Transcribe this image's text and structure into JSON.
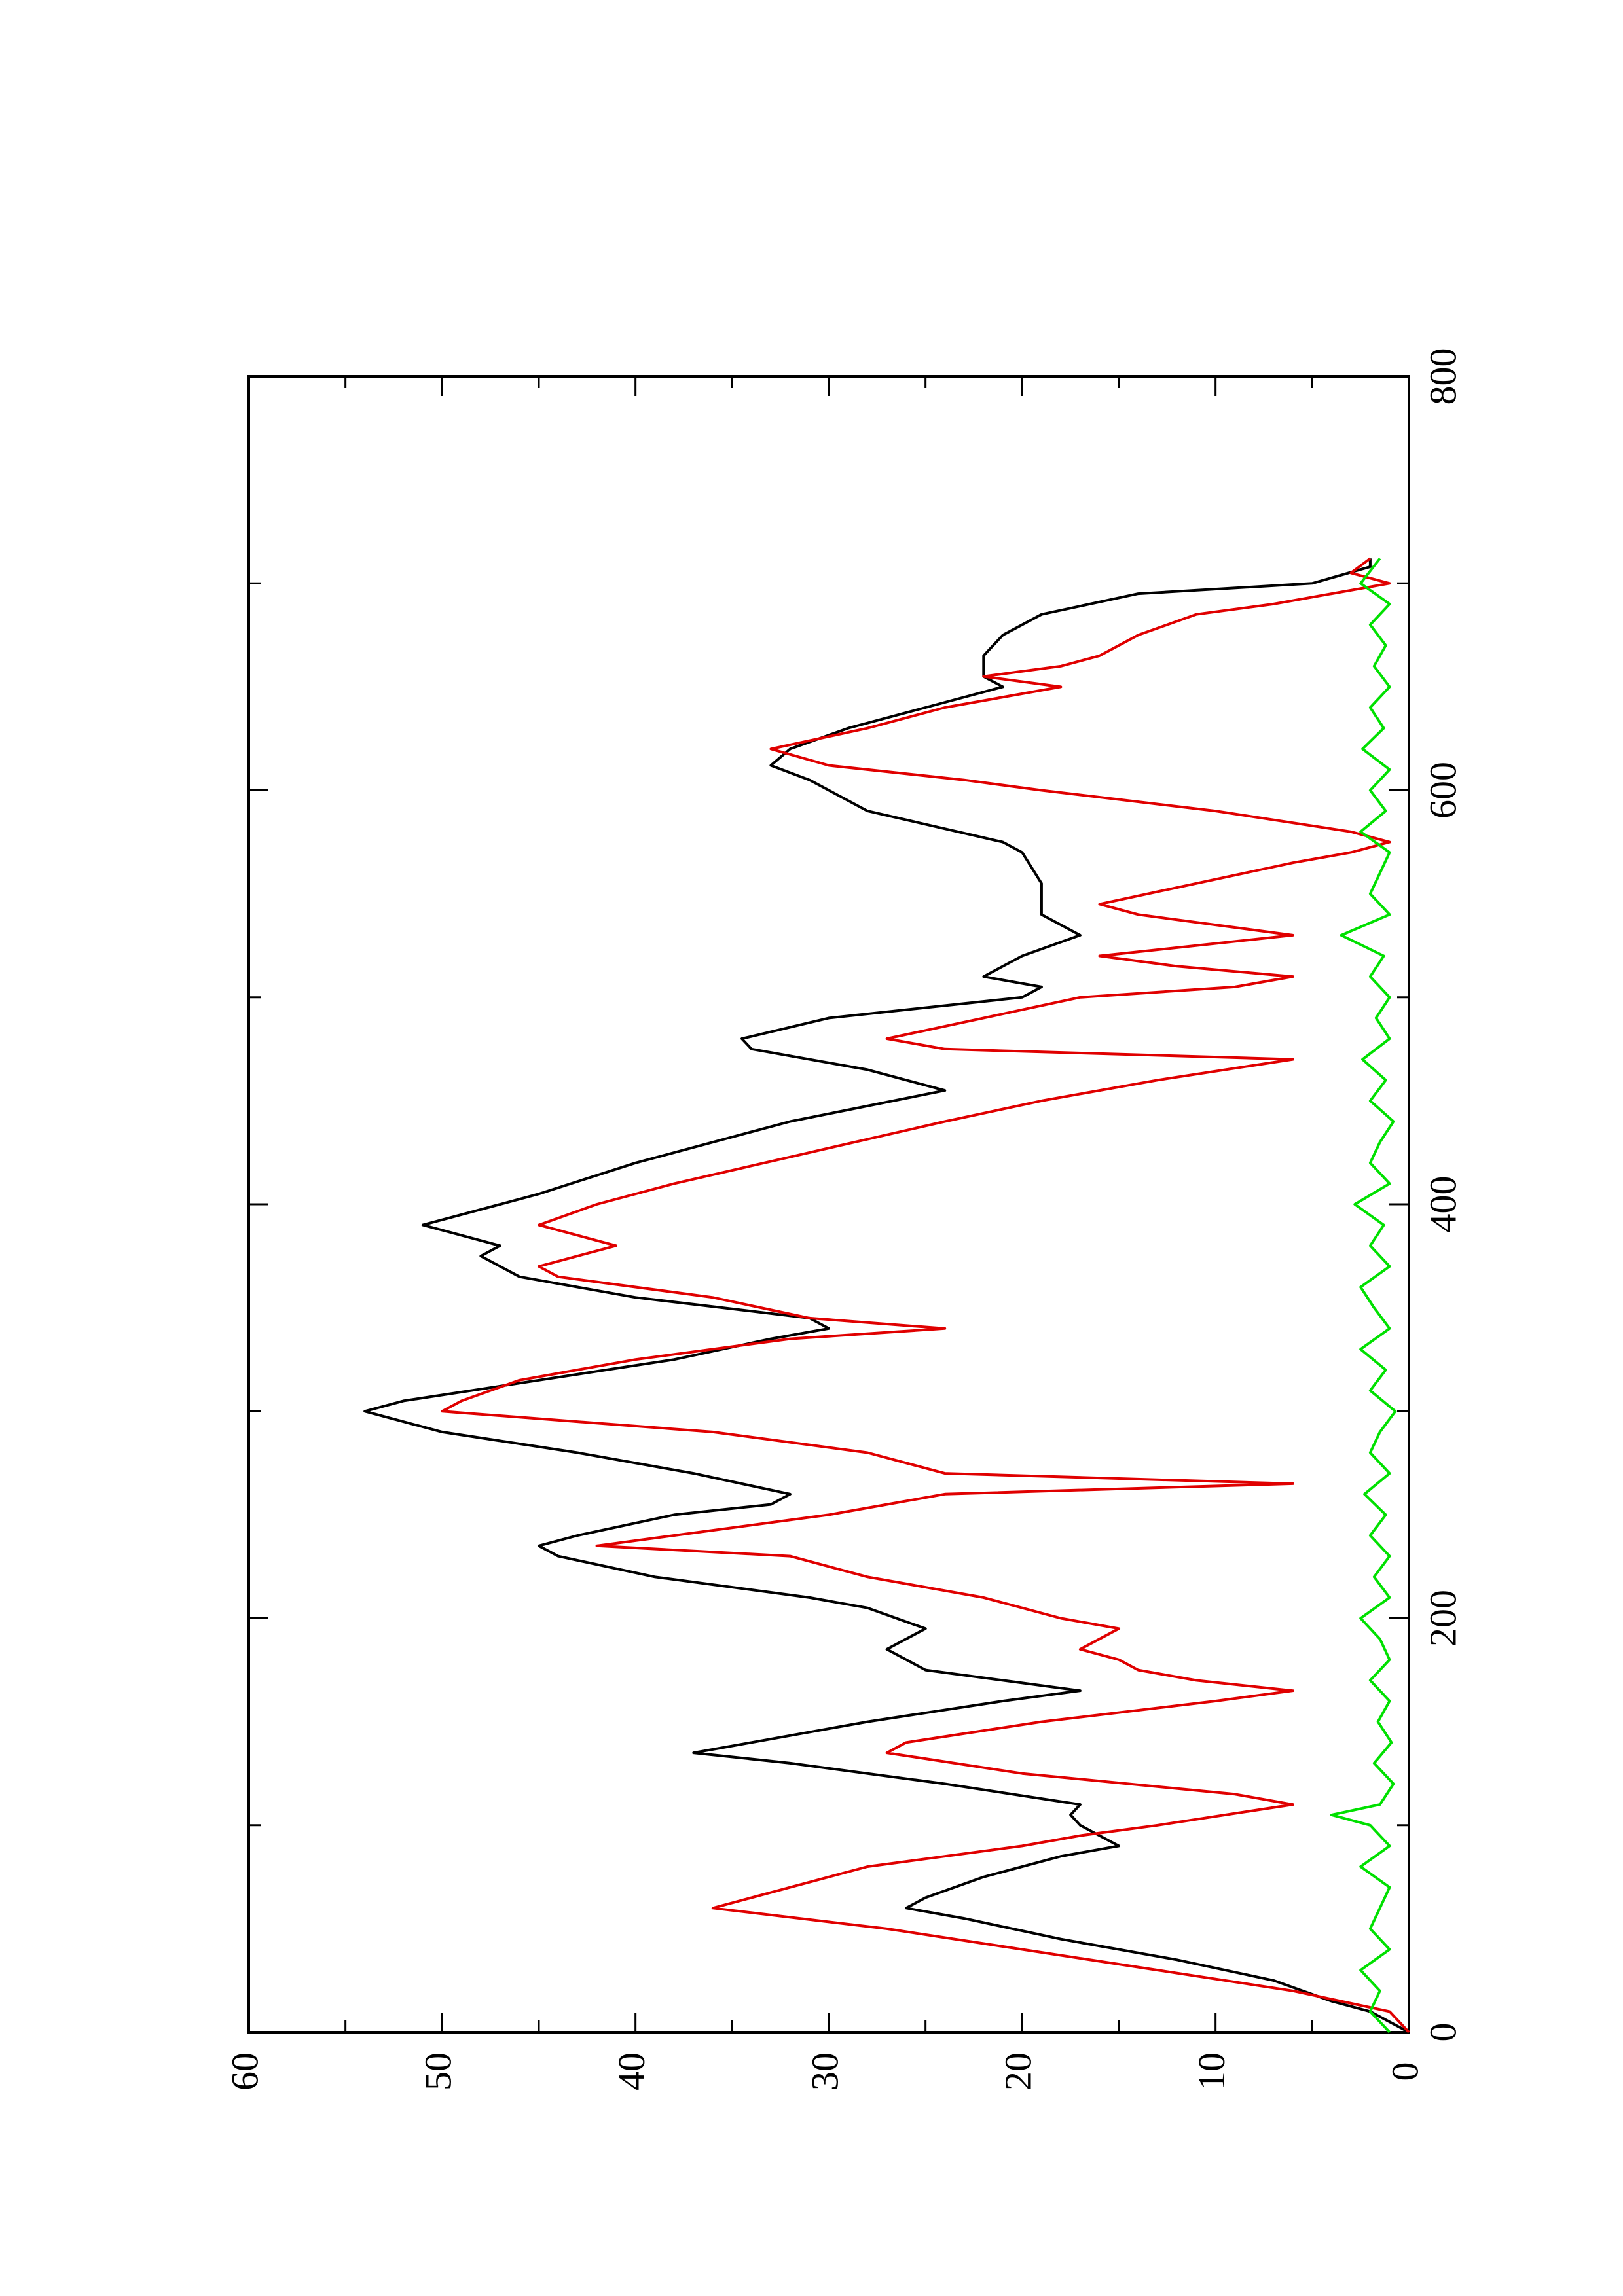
{
  "chart_data": {
    "type": "line",
    "orientation": "rotated-90-ccw",
    "title": "",
    "xlabel": "",
    "ylabel": "",
    "xlim": [
      0,
      800
    ],
    "ylim": [
      0,
      60
    ],
    "x_ticks": [
      0,
      200,
      400,
      600,
      800
    ],
    "x_tick_labels": [
      "0",
      "200",
      "400",
      "600",
      "800"
    ],
    "y_ticks": [
      0,
      10,
      20,
      30,
      40,
      50,
      60
    ],
    "y_tick_labels": [
      "0",
      "10",
      "20",
      "30",
      "40",
      "50",
      "60"
    ],
    "grid": false,
    "legend": "none",
    "series": [
      {
        "color": "#000000",
        "points": [
          [
            0,
            0
          ],
          [
            5,
            1
          ],
          [
            10,
            2
          ],
          [
            15,
            4
          ],
          [
            25,
            7
          ],
          [
            35,
            12
          ],
          [
            45,
            18
          ],
          [
            55,
            23
          ],
          [
            60,
            26
          ],
          [
            65,
            25
          ],
          [
            75,
            22
          ],
          [
            85,
            18
          ],
          [
            90,
            15
          ],
          [
            95,
            16
          ],
          [
            100,
            17
          ],
          [
            105,
            17.5
          ],
          [
            110,
            17
          ],
          [
            120,
            24
          ],
          [
            130,
            32
          ],
          [
            135,
            37
          ],
          [
            140,
            34
          ],
          [
            150,
            28
          ],
          [
            160,
            21
          ],
          [
            165,
            17
          ],
          [
            170,
            21
          ],
          [
            175,
            25
          ],
          [
            185,
            27
          ],
          [
            195,
            25
          ],
          [
            205,
            28
          ],
          [
            210,
            31
          ],
          [
            220,
            39
          ],
          [
            230,
            44
          ],
          [
            235,
            45
          ],
          [
            240,
            43
          ],
          [
            250,
            38
          ],
          [
            255,
            33
          ],
          [
            260,
            32
          ],
          [
            270,
            37
          ],
          [
            280,
            43
          ],
          [
            290,
            50
          ],
          [
            300,
            54
          ],
          [
            305,
            52
          ],
          [
            315,
            45
          ],
          [
            325,
            38
          ],
          [
            335,
            33
          ],
          [
            340,
            30
          ],
          [
            345,
            31
          ],
          [
            355,
            40
          ],
          [
            365,
            46
          ],
          [
            375,
            48
          ],
          [
            380,
            47
          ],
          [
            390,
            51
          ],
          [
            395,
            49
          ],
          [
            405,
            45
          ],
          [
            420,
            40
          ],
          [
            440,
            32
          ],
          [
            455,
            24
          ],
          [
            465,
            28
          ],
          [
            475,
            34
          ],
          [
            480,
            34.5
          ],
          [
            490,
            30
          ],
          [
            500,
            20
          ],
          [
            505,
            19
          ],
          [
            510,
            22
          ],
          [
            520,
            20
          ],
          [
            530,
            17
          ],
          [
            540,
            19
          ],
          [
            555,
            19
          ],
          [
            570,
            20
          ],
          [
            575,
            21
          ],
          [
            590,
            28
          ],
          [
            605,
            31
          ],
          [
            612,
            33
          ],
          [
            620,
            32
          ],
          [
            630,
            29
          ],
          [
            640,
            25
          ],
          [
            650,
            21
          ],
          [
            655,
            22
          ],
          [
            665,
            22
          ],
          [
            675,
            21
          ],
          [
            685,
            19
          ],
          [
            695,
            14
          ],
          [
            700,
            5
          ],
          [
            708,
            2
          ],
          [
            712,
            2
          ]
        ]
      },
      {
        "color": "#e00000",
        "points": [
          [
            0,
            0
          ],
          [
            10,
            1
          ],
          [
            20,
            6
          ],
          [
            30,
            13
          ],
          [
            40,
            20
          ],
          [
            50,
            27
          ],
          [
            60,
            36
          ],
          [
            70,
            32
          ],
          [
            80,
            28
          ],
          [
            85,
            24
          ],
          [
            90,
            20
          ],
          [
            95,
            17
          ],
          [
            100,
            13
          ],
          [
            110,
            6
          ],
          [
            115,
            9
          ],
          [
            125,
            20
          ],
          [
            135,
            27
          ],
          [
            140,
            26
          ],
          [
            150,
            19
          ],
          [
            160,
            10
          ],
          [
            165,
            6
          ],
          [
            170,
            11
          ],
          [
            175,
            14
          ],
          [
            180,
            15
          ],
          [
            185,
            17
          ],
          [
            195,
            15
          ],
          [
            200,
            18
          ],
          [
            210,
            22
          ],
          [
            220,
            28
          ],
          [
            230,
            32
          ],
          [
            235,
            42
          ],
          [
            240,
            38
          ],
          [
            250,
            30
          ],
          [
            255,
            27
          ],
          [
            260,
            24
          ],
          [
            265,
            6
          ],
          [
            270,
            24
          ],
          [
            280,
            28
          ],
          [
            290,
            36
          ],
          [
            300,
            50
          ],
          [
            305,
            49
          ],
          [
            315,
            46
          ],
          [
            325,
            40
          ],
          [
            335,
            32
          ],
          [
            340,
            24
          ],
          [
            345,
            31
          ],
          [
            355,
            36
          ],
          [
            365,
            44
          ],
          [
            370,
            45
          ],
          [
            380,
            41
          ],
          [
            390,
            45
          ],
          [
            400,
            42
          ],
          [
            410,
            38
          ],
          [
            425,
            31
          ],
          [
            440,
            24
          ],
          [
            450,
            19
          ],
          [
            460,
            13
          ],
          [
            470,
            6
          ],
          [
            475,
            24
          ],
          [
            480,
            27
          ],
          [
            490,
            22
          ],
          [
            500,
            17
          ],
          [
            505,
            9
          ],
          [
            510,
            6
          ],
          [
            515,
            12
          ],
          [
            520,
            16
          ],
          [
            530,
            6
          ],
          [
            540,
            14
          ],
          [
            545,
            16
          ],
          [
            555,
            11
          ],
          [
            565,
            6
          ],
          [
            570,
            3
          ],
          [
            575,
            1
          ],
          [
            580,
            3
          ],
          [
            590,
            10
          ],
          [
            600,
            19
          ],
          [
            605,
            23
          ],
          [
            612,
            30
          ],
          [
            620,
            33
          ],
          [
            630,
            28
          ],
          [
            640,
            24
          ],
          [
            650,
            18
          ],
          [
            655,
            22
          ],
          [
            660,
            18
          ],
          [
            665,
            16
          ],
          [
            675,
            14
          ],
          [
            685,
            11
          ],
          [
            690,
            7
          ],
          [
            695,
            4
          ],
          [
            700,
            1
          ],
          [
            705,
            3
          ],
          [
            712,
            2
          ]
        ]
      },
      {
        "color": "#00e000",
        "points": [
          [
            0,
            1
          ],
          [
            10,
            2
          ],
          [
            20,
            1.5
          ],
          [
            30,
            2.5
          ],
          [
            40,
            1
          ],
          [
            50,
            2
          ],
          [
            60,
            1.5
          ],
          [
            70,
            1
          ],
          [
            80,
            2.5
          ],
          [
            90,
            1
          ],
          [
            100,
            2
          ],
          [
            105,
            4
          ],
          [
            110,
            1.5
          ],
          [
            120,
            0.8
          ],
          [
            130,
            1.8
          ],
          [
            140,
            0.9
          ],
          [
            150,
            1.6
          ],
          [
            160,
            1
          ],
          [
            170,
            2
          ],
          [
            180,
            1
          ],
          [
            190,
            1.5
          ],
          [
            200,
            2.5
          ],
          [
            210,
            1
          ],
          [
            220,
            1.8
          ],
          [
            230,
            1
          ],
          [
            240,
            2
          ],
          [
            250,
            1.2
          ],
          [
            260,
            2.3
          ],
          [
            270,
            1
          ],
          [
            280,
            2
          ],
          [
            290,
            1.5
          ],
          [
            300,
            0.7
          ],
          [
            310,
            2
          ],
          [
            320,
            1.2
          ],
          [
            330,
            2.5
          ],
          [
            340,
            1
          ],
          [
            350,
            1.8
          ],
          [
            360,
            2.5
          ],
          [
            370,
            1
          ],
          [
            380,
            2
          ],
          [
            390,
            1.3
          ],
          [
            400,
            2.8
          ],
          [
            410,
            1
          ],
          [
            420,
            2
          ],
          [
            430,
            1.5
          ],
          [
            440,
            0.8
          ],
          [
            450,
            2
          ],
          [
            460,
            1.2
          ],
          [
            470,
            2.4
          ],
          [
            480,
            1
          ],
          [
            490,
            1.7
          ],
          [
            500,
            1
          ],
          [
            510,
            2
          ],
          [
            520,
            1.3
          ],
          [
            530,
            3.5
          ],
          [
            540,
            1
          ],
          [
            550,
            2
          ],
          [
            560,
            1.5
          ],
          [
            570,
            1
          ],
          [
            580,
            2.5
          ],
          [
            590,
            1.2
          ],
          [
            600,
            2
          ],
          [
            610,
            1
          ],
          [
            620,
            2.4
          ],
          [
            630,
            1.3
          ],
          [
            640,
            2
          ],
          [
            650,
            1
          ],
          [
            660,
            1.8
          ],
          [
            670,
            1.2
          ],
          [
            680,
            2
          ],
          [
            690,
            1
          ],
          [
            700,
            2.5
          ],
          [
            712,
            1.5
          ]
        ]
      }
    ]
  }
}
